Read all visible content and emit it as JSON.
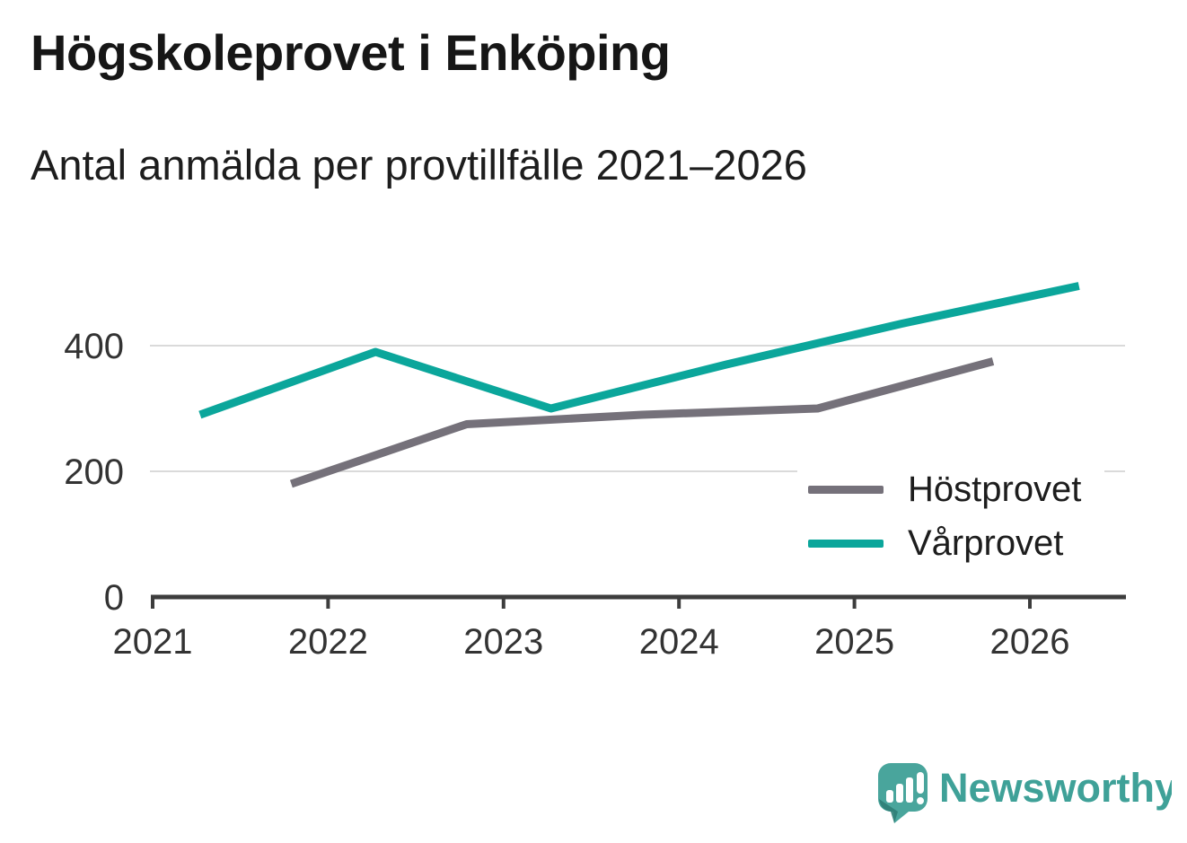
{
  "header": {
    "title": "Högskoleprovet i Enköping",
    "subtitle": "Antal anmälda per provtillfälle 2021–2026"
  },
  "chart_data": {
    "type": "line",
    "title": "Högskoleprovet i Enköping",
    "subtitle": "Antal anmälda per provtillfälle 2021–2026",
    "xlabel": "",
    "ylabel": "",
    "x_ticks": [
      2021,
      2022,
      2023,
      2024,
      2025,
      2026
    ],
    "y_ticks": [
      0,
      200,
      400
    ],
    "xlim": [
      2021,
      2026.56
    ],
    "ylim": [
      0,
      560
    ],
    "grid": "horizontal-only",
    "legend_position": "inside-right",
    "series": [
      {
        "name": "Höstprovet",
        "color": "#75717a",
        "points": [
          {
            "x": 2021.79,
            "y": 180
          },
          {
            "x": 2022.79,
            "y": 275
          },
          {
            "x": 2023.79,
            "y": 290
          },
          {
            "x": 2024.79,
            "y": 300
          },
          {
            "x": 2025.79,
            "y": 375
          }
        ]
      },
      {
        "name": "Vårprovet",
        "color": "#0ba69b",
        "points": [
          {
            "x": 2021.27,
            "y": 290
          },
          {
            "x": 2022.27,
            "y": 390
          },
          {
            "x": 2023.27,
            "y": 300
          },
          {
            "x": 2024.27,
            "y": 370
          },
          {
            "x": 2025.27,
            "y": 435
          },
          {
            "x": 2026.28,
            "y": 495
          }
        ]
      }
    ]
  },
  "legend": {
    "items": [
      {
        "label": "Höstprovet",
        "color": "#75717a"
      },
      {
        "label": "Vårprovet",
        "color": "#0ba69b"
      }
    ]
  },
  "branding": {
    "name": "Newsworthy",
    "wordmark_color": "#3fa198",
    "bubble_color": "#49a59c",
    "bubble_shadow_color": "#2f7e77"
  },
  "style_colors": {
    "axis": "#3d3d3d",
    "gridline": "#dadada",
    "tick_label": "#333333",
    "background": "#ffffff"
  }
}
